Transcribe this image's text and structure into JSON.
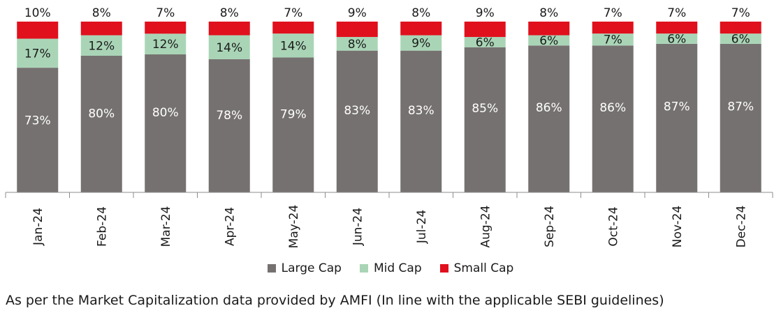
{
  "chart_data": {
    "type": "bar",
    "stacked": true,
    "categories": [
      "Jan-24",
      "Feb-24",
      "Mar-24",
      "Apr-24",
      "May-24",
      "Jun-24",
      "Jul-24",
      "Aug-24",
      "Sep-24",
      "Oct-24",
      "Nov-24",
      "Dec-24"
    ],
    "series": [
      {
        "name": "Large Cap",
        "color": "#767171",
        "values": [
          73,
          80,
          80,
          78,
          79,
          83,
          83,
          85,
          86,
          86,
          87,
          87
        ],
        "labels": [
          "73%",
          "80%",
          "80%",
          "78%",
          "79%",
          "83%",
          "83%",
          "85%",
          "86%",
          "86%",
          "87%",
          "87%"
        ]
      },
      {
        "name": "Mid Cap",
        "color": "#a9d5b6",
        "values": [
          17,
          12,
          12,
          14,
          14,
          8,
          9,
          6,
          6,
          7,
          6,
          6
        ],
        "labels": [
          "17%",
          "12%",
          "12%",
          "14%",
          "14%",
          "8%",
          "9%",
          "6%",
          "6%",
          "7%",
          "6%",
          "6%"
        ]
      },
      {
        "name": "Small Cap",
        "color": "#e0101d",
        "values": [
          10,
          8,
          7,
          8,
          7,
          9,
          8,
          9,
          8,
          7,
          7,
          7
        ],
        "labels": [
          "10%",
          "8%",
          "7%",
          "8%",
          "7%",
          "9%",
          "8%",
          "9%",
          "8%",
          "7%",
          "7%",
          "7%"
        ]
      }
    ],
    "ylim": [
      0,
      100
    ],
    "grid": false,
    "legend_position": "bottom"
  },
  "footnote": "As per the Market Capitalization data provided by AMFI (In line with the applicable SEBI guidelines)"
}
